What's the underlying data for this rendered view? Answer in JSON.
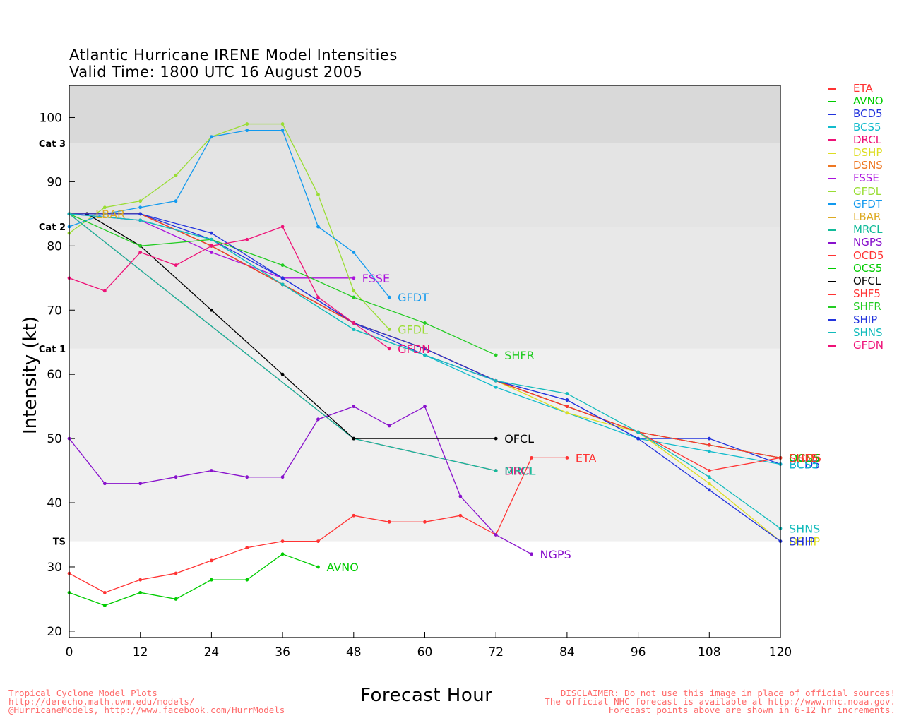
{
  "header": {
    "title_line1": "Atlantic Hurricane IRENE Model Intensities",
    "title_line2": "Valid Time: 1800 UTC 16 August 2005"
  },
  "footer": {
    "left": [
      "Tropical Cyclone Model Plots",
      "http://derecho.math.uwm.edu/models/",
      "@HurricaneModels, http://www.facebook.com/HurrModels"
    ],
    "right": [
      "DISCLAIMER: Do not use this image in place of official sources!",
      "The official NHC forecast is available at http://www.nhc.noaa.gov.",
      "Forecast points above are shown in 6-12 hr increments."
    ]
  },
  "chart_data": {
    "type": "line",
    "xlabel": "Forecast Hour",
    "ylabel": "Intensity (kt)",
    "xlim": [
      0,
      120
    ],
    "ylim": [
      19,
      105
    ],
    "xticks": [
      0,
      12,
      24,
      36,
      48,
      60,
      72,
      84,
      96,
      108,
      120
    ],
    "yticks": [
      20,
      30,
      40,
      50,
      60,
      70,
      80,
      90,
      100
    ],
    "bands": [
      {
        "from": 19,
        "to": 34,
        "color": "#ffffff"
      },
      {
        "from": 34,
        "to": 64,
        "color": "#f0f0f0"
      },
      {
        "from": 64,
        "to": 83,
        "color": "#e8e8e8"
      },
      {
        "from": 83,
        "to": 96,
        "color": "#e4e4e4"
      },
      {
        "from": 96,
        "to": 105,
        "color": "#d9d9d9"
      }
    ],
    "category_labels": [
      {
        "label": "TS",
        "value": 34
      },
      {
        "label": "Cat 1",
        "value": 64
      },
      {
        "label": "Cat 2",
        "value": 83
      },
      {
        "label": "Cat 3",
        "value": 96
      }
    ],
    "series": [
      {
        "name": "ETA",
        "color": "#ff3333",
        "x": [
          0,
          6,
          12,
          18,
          24,
          30,
          36,
          42,
          48,
          54,
          60,
          66,
          72,
          78,
          84
        ],
        "y": [
          29,
          26,
          28,
          29,
          31,
          33,
          34,
          34,
          38,
          37,
          37,
          38,
          35,
          47,
          47
        ],
        "end_label": "ETA"
      },
      {
        "name": "AVNO",
        "color": "#00cc00",
        "x": [
          0,
          6,
          12,
          18,
          24,
          30,
          36,
          42
        ],
        "y": [
          26,
          24,
          26,
          25,
          28,
          28,
          32,
          30
        ],
        "end_label": "AVNO"
      },
      {
        "name": "BCD5",
        "color": "#2233dd",
        "x": [
          0,
          12,
          24,
          36,
          48,
          60,
          72,
          84,
          96,
          108,
          120
        ],
        "y": [
          85,
          85,
          81,
          75,
          68,
          63,
          59,
          56,
          50,
          50,
          46
        ],
        "end_label": "BCD5"
      },
      {
        "name": "BCS5",
        "color": "#11bbcc",
        "x": [
          0,
          12,
          24,
          36,
          48,
          60,
          72,
          84,
          96,
          108,
          120
        ],
        "y": [
          85,
          84,
          81,
          74,
          67,
          63,
          58,
          54,
          50,
          48,
          46
        ],
        "end_label": "BCS5"
      },
      {
        "name": "DRCL",
        "color": "#ee1177",
        "x": [
          0,
          48,
          72
        ],
        "y": [
          85,
          50,
          45
        ],
        "end_label": "DRCL"
      },
      {
        "name": "DSHP",
        "color": "#dddd22",
        "x": [
          0,
          12,
          24,
          36,
          48,
          60,
          72,
          84,
          96,
          108,
          120
        ],
        "y": [
          85,
          85,
          80,
          74,
          68,
          64,
          59,
          54,
          51,
          43,
          34
        ],
        "end_label": "DSHP"
      },
      {
        "name": "DSNS",
        "color": "#ee7722",
        "x": [
          0,
          12,
          24,
          36,
          48,
          60,
          72,
          84,
          96,
          108,
          120
        ],
        "y": [
          85,
          85,
          80,
          74,
          68,
          64,
          59,
          55,
          51,
          49,
          47
        ],
        "end_label": "DSNS"
      },
      {
        "name": "FSSE",
        "color": "#aa11dd",
        "x": [
          0,
          12,
          24,
          36,
          48
        ],
        "y": [
          85,
          84,
          79,
          75,
          75
        ],
        "end_label": "FSSE"
      },
      {
        "name": "GFDL",
        "color": "#99dd33",
        "x": [
          0,
          6,
          12,
          18,
          24,
          30,
          36,
          42,
          48,
          54
        ],
        "y": [
          82,
          86,
          87,
          91,
          97,
          99,
          99,
          88,
          73,
          67
        ],
        "end_label": "GFDL"
      },
      {
        "name": "GFDT",
        "color": "#1199ee",
        "x": [
          0,
          6,
          12,
          18,
          24,
          30,
          36,
          42,
          48,
          54
        ],
        "y": [
          83,
          85,
          86,
          87,
          97,
          98,
          98,
          83,
          79,
          72
        ],
        "end_label": "GFDT"
      },
      {
        "name": "LBAR",
        "color": "#ddaa22",
        "x": [
          0,
          3
        ],
        "y": [
          85,
          85
        ],
        "end_label": "LBAR"
      },
      {
        "name": "MRCL",
        "color": "#11bb99",
        "x": [
          0,
          48,
          72
        ],
        "y": [
          85,
          50,
          45
        ],
        "end_label": "MRCL"
      },
      {
        "name": "NGPS",
        "color": "#8811cc",
        "x": [
          0,
          6,
          12,
          18,
          24,
          30,
          36,
          42,
          48,
          54,
          60,
          66,
          72,
          78
        ],
        "y": [
          50,
          43,
          43,
          44,
          45,
          44,
          44,
          53,
          55,
          52,
          55,
          41,
          35,
          32
        ],
        "end_label": "NGPS"
      },
      {
        "name": "OCD5",
        "color": "#ff3333",
        "x": [
          0,
          12,
          24,
          36,
          48,
          60,
          72,
          84,
          96,
          108,
          120
        ],
        "y": [
          85,
          85,
          80,
          74,
          68,
          64,
          59,
          55,
          51,
          45,
          47
        ],
        "end_label": "OCD5"
      },
      {
        "name": "OCS5",
        "color": "#00cc00",
        "x": [
          0,
          12,
          24,
          36,
          48,
          60,
          72,
          84,
          96,
          108,
          120
        ],
        "y": [
          85,
          85,
          80,
          74,
          68,
          64,
          59,
          55,
          51,
          49,
          47
        ],
        "end_label": "OCS5"
      },
      {
        "name": "OFCL",
        "color": "#000000",
        "x": [
          3,
          12,
          24,
          36,
          48,
          72
        ],
        "y": [
          85,
          80,
          70,
          60,
          50,
          50
        ],
        "end_label": "OFCL"
      },
      {
        "name": "SHF5",
        "color": "#ff3333",
        "x": [
          0,
          12,
          24,
          36,
          48,
          60,
          72,
          84,
          96,
          108,
          120
        ],
        "y": [
          85,
          85,
          80,
          74,
          68,
          64,
          59,
          55,
          51,
          49,
          47
        ],
        "end_label": "SHF5"
      },
      {
        "name": "SHFR",
        "color": "#22cc22",
        "x": [
          0,
          12,
          24,
          36,
          48,
          60,
          72
        ],
        "y": [
          85,
          80,
          81,
          77,
          72,
          68,
          63
        ],
        "end_label": "SHFR"
      },
      {
        "name": "SHIP",
        "color": "#2233dd",
        "x": [
          0,
          12,
          24,
          36,
          48,
          60,
          72,
          84,
          96,
          108,
          120
        ],
        "y": [
          85,
          85,
          82,
          75,
          68,
          64,
          59,
          56,
          50,
          42,
          34
        ],
        "end_label": "SHIP"
      },
      {
        "name": "SHNS",
        "color": "#11bbbb",
        "x": [
          0,
          12,
          24,
          36,
          48,
          60,
          72,
          84,
          96,
          108,
          120
        ],
        "y": [
          85,
          84,
          81,
          74,
          67,
          63,
          59,
          57,
          51,
          44,
          36
        ],
        "end_label": "SHNS"
      },
      {
        "name": "GFDN",
        "color": "#ee1177",
        "x": [
          0,
          6,
          12,
          18,
          24,
          30,
          36,
          42,
          48,
          54
        ],
        "y": [
          75,
          73,
          79,
          77,
          80,
          81,
          83,
          72,
          68,
          64
        ],
        "end_label": "GFDN"
      }
    ]
  }
}
